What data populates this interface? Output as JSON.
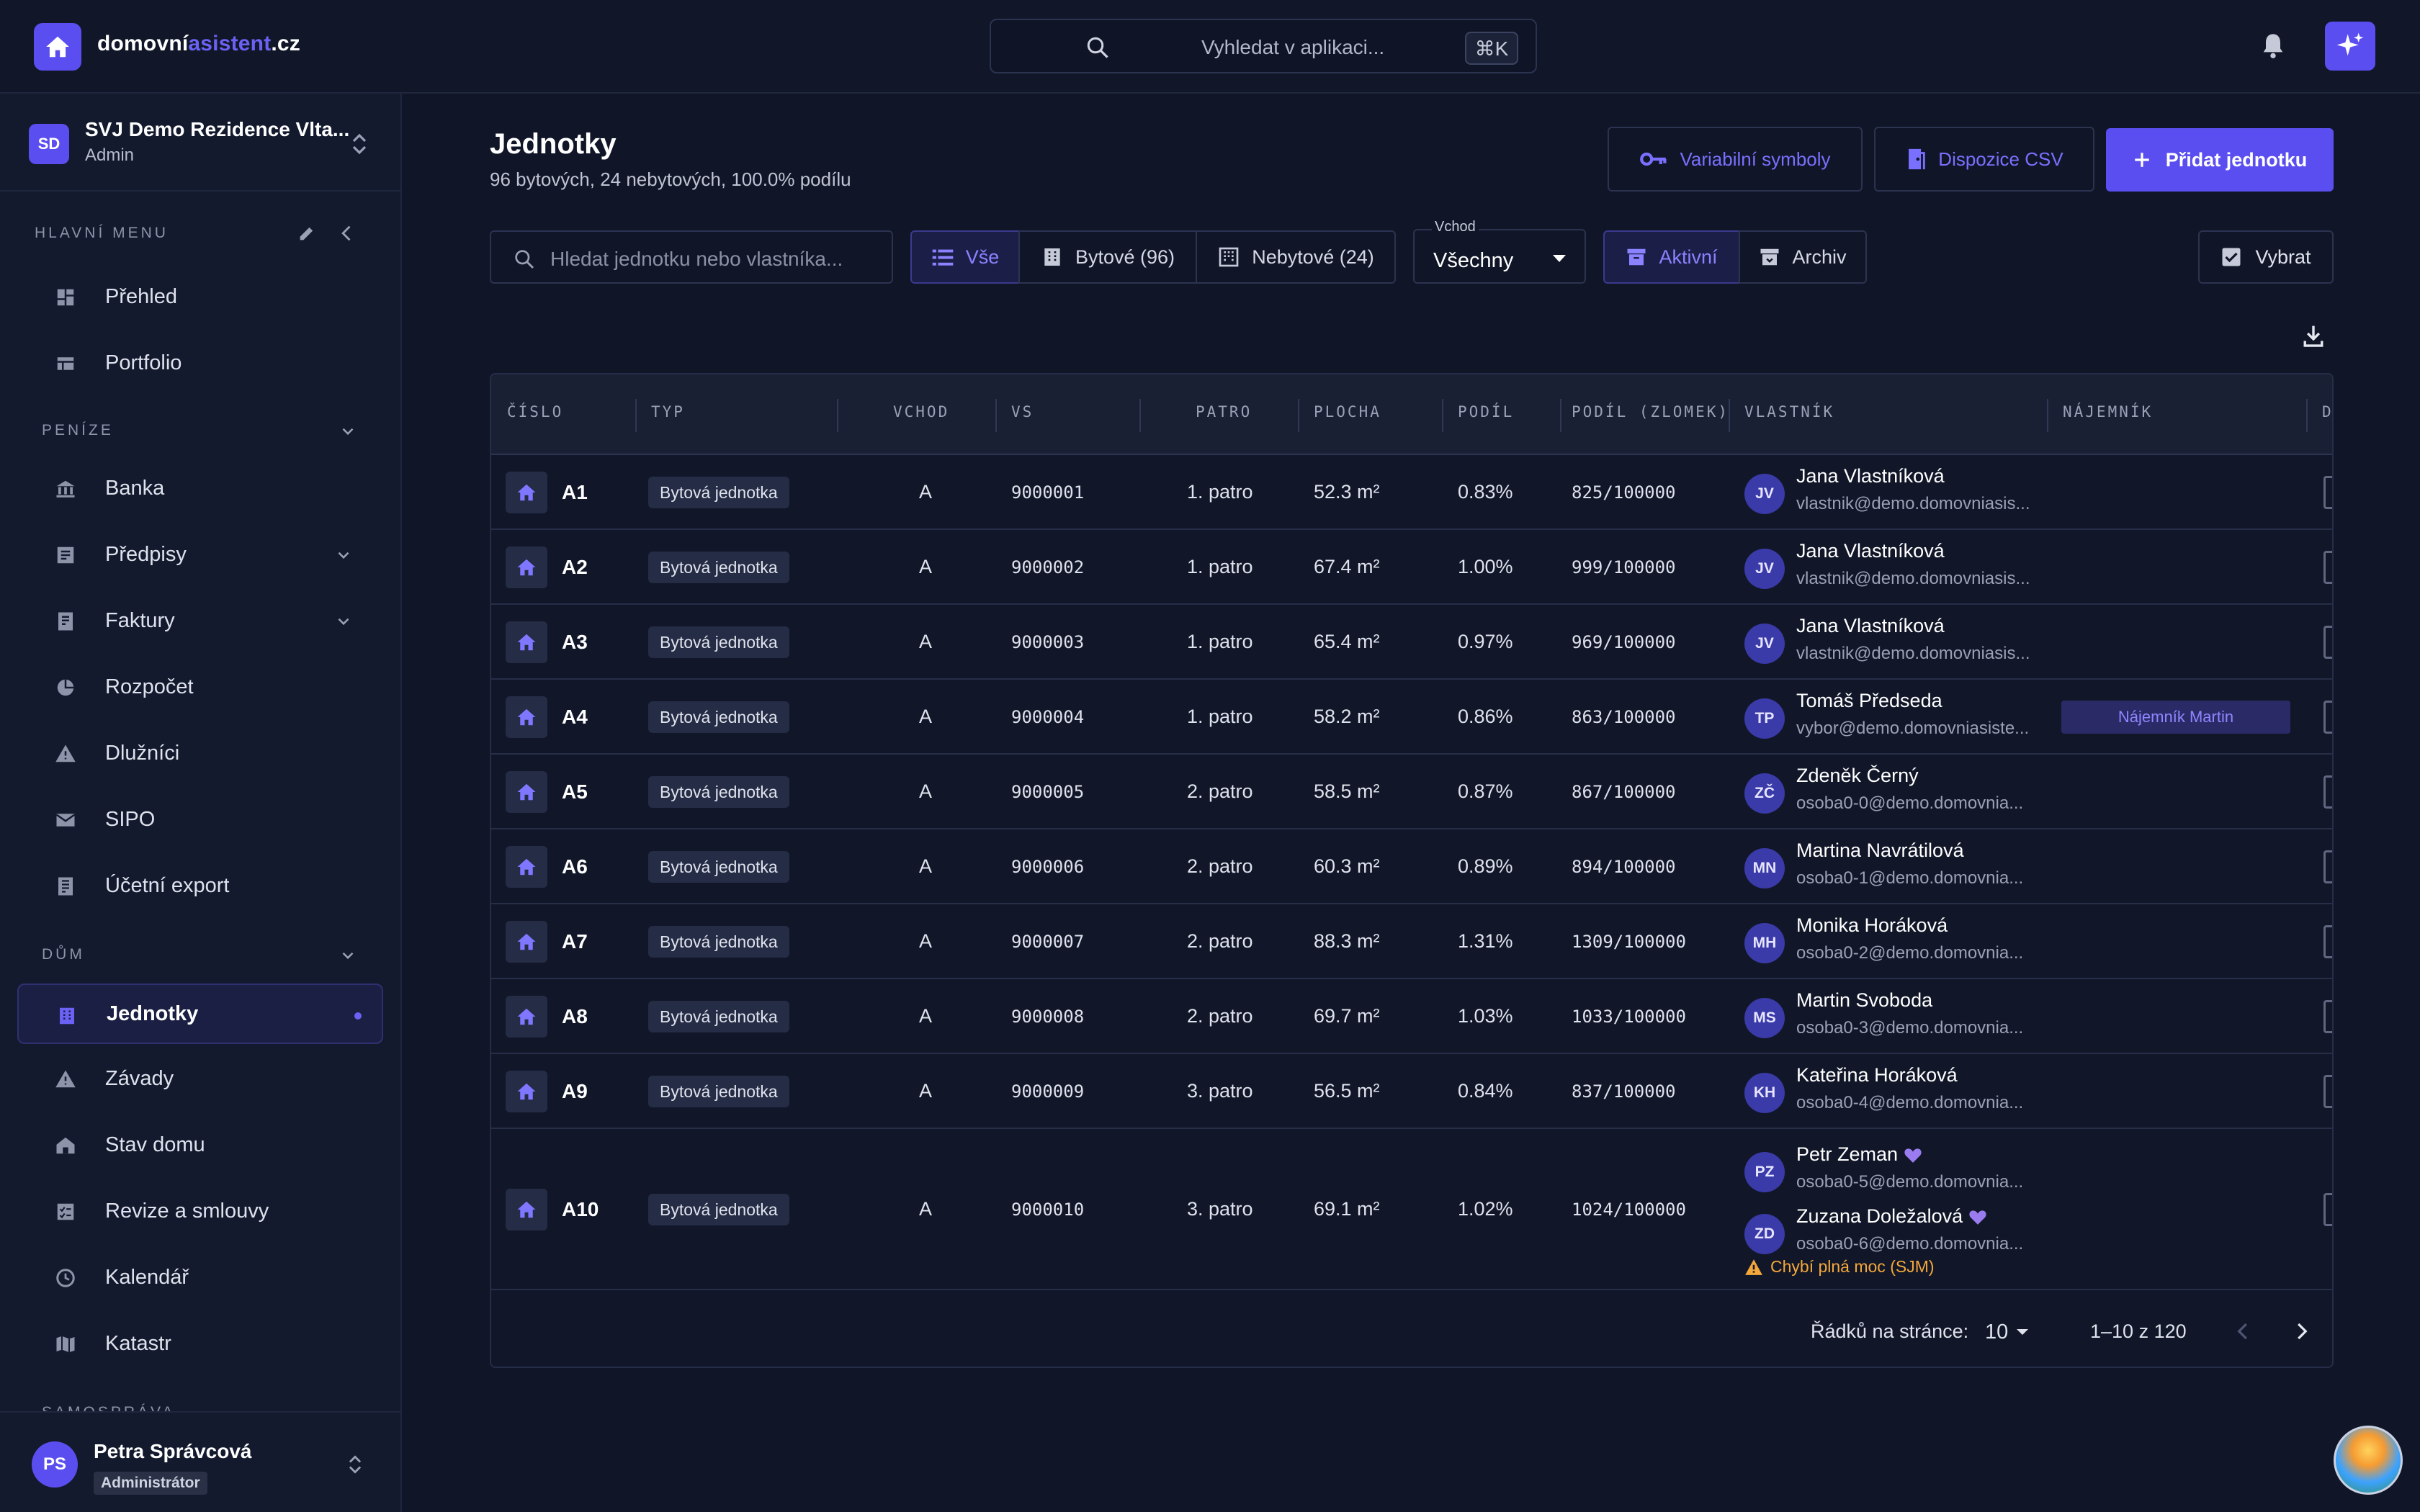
{
  "brand": {
    "word1": "domovní",
    "word2": "asistent",
    "tld": ".cz"
  },
  "topbar": {
    "search_placeholder": "Vyhledat v aplikaci...",
    "shortcut": "⌘K"
  },
  "org": {
    "initials": "SD",
    "name": "SVJ Demo Rezidence Vlta...",
    "role": "Admin"
  },
  "sidebar": {
    "section_main": "HLAVNÍ MENU",
    "main_items": [
      {
        "label": "Přehled",
        "icon": "dashboard-icon"
      },
      {
        "label": "Portfolio",
        "icon": "portfolio-icon"
      }
    ],
    "section_money": "PENÍZE",
    "money_items": [
      {
        "label": "Banka",
        "icon": "bank-icon"
      },
      {
        "label": "Předpisy",
        "icon": "receipt-icon"
      },
      {
        "label": "Faktury",
        "icon": "invoice-icon"
      },
      {
        "label": "Rozpočet",
        "icon": "pie-chart-icon"
      },
      {
        "label": "Dlužníci",
        "icon": "warning-icon"
      },
      {
        "label": "SIPO",
        "icon": "mail-icon"
      },
      {
        "label": "Účetní export",
        "icon": "export-icon"
      }
    ],
    "section_house": "DŮM",
    "house_items": [
      {
        "label": "Jednotky",
        "icon": "building-icon",
        "active": true
      },
      {
        "label": "Závady",
        "icon": "warning-icon"
      },
      {
        "label": "Stav domu",
        "icon": "house-state-icon"
      },
      {
        "label": "Revize a smlouvy",
        "icon": "checklist-icon"
      },
      {
        "label": "Kalendář",
        "icon": "clock-icon"
      },
      {
        "label": "Katastr",
        "icon": "map-icon"
      }
    ],
    "section_next": "SAMOSPRÁVA"
  },
  "user": {
    "initials": "PS",
    "name": "Petra Správcová",
    "role": "Administrátor"
  },
  "page": {
    "title": "Jednotky",
    "subtitle": "96 bytových, 24 nebytových, 100.0% podílu",
    "btn_vs": "Variabilní symboly",
    "btn_csv": "Dispozice CSV",
    "btn_add": "Přidat jednotku"
  },
  "filters": {
    "search_placeholder": "Hledat jednotku nebo vlastníka...",
    "seg_all": "Vše",
    "seg_res": "Bytové (96)",
    "seg_nonres": "Nebytové (24)",
    "vchod_label": "Vchod",
    "vchod_value": "Všechny",
    "active": "Aktivní",
    "archive": "Archiv",
    "select": "Vybrat"
  },
  "table": {
    "headers": [
      "ČÍSLO",
      "TYP",
      "VCHOD",
      "VS",
      "PATRO",
      "PLOCHA",
      "PODÍL",
      "PODÍL (ZLOMEK)",
      "VLASTNÍK",
      "NÁJEMNÍK",
      "D"
    ],
    "rows": [
      {
        "num": "A1",
        "type": "Bytová jednotka",
        "vchod": "A",
        "vs": "9000001",
        "patro": "1. patro",
        "plocha": "52.3 m²",
        "podil": "0.83%",
        "zlomek": "825/100000",
        "owners": [
          {
            "initials": "JV",
            "name": "Jana Vlastníková",
            "email": "vlastnik@demo.domovniasis..."
          }
        ],
        "tenant": ""
      },
      {
        "num": "A2",
        "type": "Bytová jednotka",
        "vchod": "A",
        "vs": "9000002",
        "patro": "1. patro",
        "plocha": "67.4 m²",
        "podil": "1.00%",
        "zlomek": "999/100000",
        "owners": [
          {
            "initials": "JV",
            "name": "Jana Vlastníková",
            "email": "vlastnik@demo.domovniasis..."
          }
        ],
        "tenant": ""
      },
      {
        "num": "A3",
        "type": "Bytová jednotka",
        "vchod": "A",
        "vs": "9000003",
        "patro": "1. patro",
        "plocha": "65.4 m²",
        "podil": "0.97%",
        "zlomek": "969/100000",
        "owners": [
          {
            "initials": "JV",
            "name": "Jana Vlastníková",
            "email": "vlastnik@demo.domovniasis..."
          }
        ],
        "tenant": ""
      },
      {
        "num": "A4",
        "type": "Bytová jednotka",
        "vchod": "A",
        "vs": "9000004",
        "patro": "1. patro",
        "plocha": "58.2 m²",
        "podil": "0.86%",
        "zlomek": "863/100000",
        "owners": [
          {
            "initials": "TP",
            "name": "Tomáš Předseda",
            "email": "vybor@demo.domovniasiste..."
          }
        ],
        "tenant": "Nájemník Martin"
      },
      {
        "num": "A5",
        "type": "Bytová jednotka",
        "vchod": "A",
        "vs": "9000005",
        "patro": "2. patro",
        "plocha": "58.5 m²",
        "podil": "0.87%",
        "zlomek": "867/100000",
        "owners": [
          {
            "initials": "ZČ",
            "name": "Zdeněk Černý",
            "email": "osoba0-0@demo.domovnia..."
          }
        ],
        "tenant": ""
      },
      {
        "num": "A6",
        "type": "Bytová jednotka",
        "vchod": "A",
        "vs": "9000006",
        "patro": "2. patro",
        "plocha": "60.3 m²",
        "podil": "0.89%",
        "zlomek": "894/100000",
        "owners": [
          {
            "initials": "MN",
            "name": "Martina Navrátilová",
            "email": "osoba0-1@demo.domovnia..."
          }
        ],
        "tenant": ""
      },
      {
        "num": "A7",
        "type": "Bytová jednotka",
        "vchod": "A",
        "vs": "9000007",
        "patro": "2. patro",
        "plocha": "88.3 m²",
        "podil": "1.31%",
        "zlomek": "1309/100000",
        "owners": [
          {
            "initials": "MH",
            "name": "Monika Horáková",
            "email": "osoba0-2@demo.domovnia..."
          }
        ],
        "tenant": ""
      },
      {
        "num": "A8",
        "type": "Bytová jednotka",
        "vchod": "A",
        "vs": "9000008",
        "patro": "2. patro",
        "plocha": "69.7 m²",
        "podil": "1.03%",
        "zlomek": "1033/100000",
        "owners": [
          {
            "initials": "MS",
            "name": "Martin Svoboda",
            "email": "osoba0-3@demo.domovnia..."
          }
        ],
        "tenant": ""
      },
      {
        "num": "A9",
        "type": "Bytová jednotka",
        "vchod": "A",
        "vs": "9000009",
        "patro": "3. patro",
        "plocha": "56.5 m²",
        "podil": "0.84%",
        "zlomek": "837/100000",
        "owners": [
          {
            "initials": "KH",
            "name": "Kateřina Horáková",
            "email": "osoba0-4@demo.domovnia..."
          }
        ],
        "tenant": ""
      },
      {
        "num": "A10",
        "type": "Bytová jednotka",
        "vchod": "A",
        "vs": "9000010",
        "patro": "3. patro",
        "plocha": "69.1 m²",
        "podil": "1.02%",
        "zlomek": "1024/100000",
        "owners": [
          {
            "initials": "PZ",
            "name": "Petr Zeman",
            "email": "osoba0-5@demo.domovnia...",
            "heart": true
          },
          {
            "initials": "ZD",
            "name": "Zuzana Doležalová",
            "email": "osoba0-6@demo.domovnia...",
            "heart": true
          }
        ],
        "warning": "Chybí plná moc (SJM)",
        "tenant": ""
      }
    ],
    "rows_per_page_label": "Řádků na stránce:",
    "rows_per_page": "10",
    "range": "1–10 z 120"
  },
  "colors": {
    "accent": "#5b4ef0",
    "bg": "#101628",
    "warning": "#f4a73a"
  }
}
